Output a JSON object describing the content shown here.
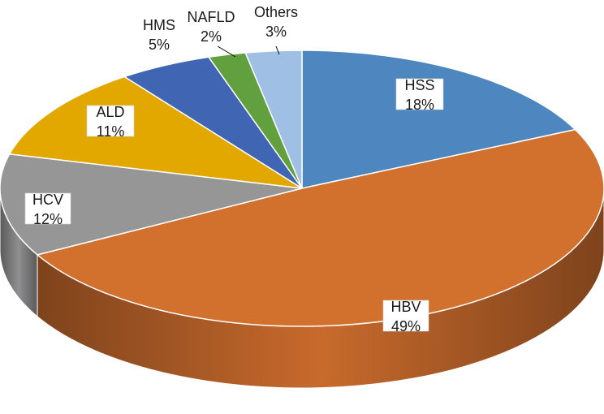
{
  "chart_data": {
    "type": "pie",
    "style": "3d",
    "title": "",
    "slices": [
      {
        "name": "HSS",
        "label": "HSS",
        "pct_label": "18%",
        "value": 18,
        "color": "#4E86C0"
      },
      {
        "name": "HBV",
        "label": "HBV",
        "pct_label": "49%",
        "value": 49,
        "color": "#D2702E"
      },
      {
        "name": "HCV",
        "label": "HCV",
        "pct_label": "12%",
        "value": 12,
        "color": "#969696"
      },
      {
        "name": "ALD",
        "label": "ALD",
        "pct_label": "11%",
        "value": 11,
        "color": "#E3A800"
      },
      {
        "name": "HMS",
        "label": "HMS",
        "pct_label": "5%",
        "value": 5,
        "color": "#3F65B3"
      },
      {
        "name": "NAFLD",
        "label": "NAFLD",
        "pct_label": "2%",
        "value": 2,
        "color": "#62A03F"
      },
      {
        "name": "Others",
        "label": "Others",
        "pct_label": "3%",
        "value": 3,
        "color": "#A0BFE4"
      }
    ]
  }
}
